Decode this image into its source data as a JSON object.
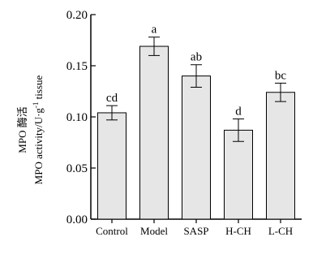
{
  "chart_data": {
    "type": "bar",
    "categories": [
      "Control",
      "Model",
      "SASP",
      "H-CH",
      "L-CH"
    ],
    "values": [
      0.104,
      0.169,
      0.14,
      0.087,
      0.124
    ],
    "errors": [
      0.007,
      0.009,
      0.011,
      0.011,
      0.009
    ],
    "significance": [
      "cd",
      "a",
      "ab",
      "d",
      "bc"
    ],
    "ylabel_line1": "MPO 酶活",
    "ylabel_line2": "MPO activity/U·g",
    "ylabel_sup": "-1",
    "ylabel_tail": " tissue",
    "ylim": [
      0,
      0.2
    ],
    "yticks": [
      0.0,
      0.05,
      0.1,
      0.15,
      0.2
    ],
    "ytick_labels": [
      "0.00",
      "0.05",
      "0.10",
      "0.15",
      "0.20"
    ],
    "grid": false,
    "bar_color": "#e6e6e6",
    "edge_color": "#000000"
  }
}
